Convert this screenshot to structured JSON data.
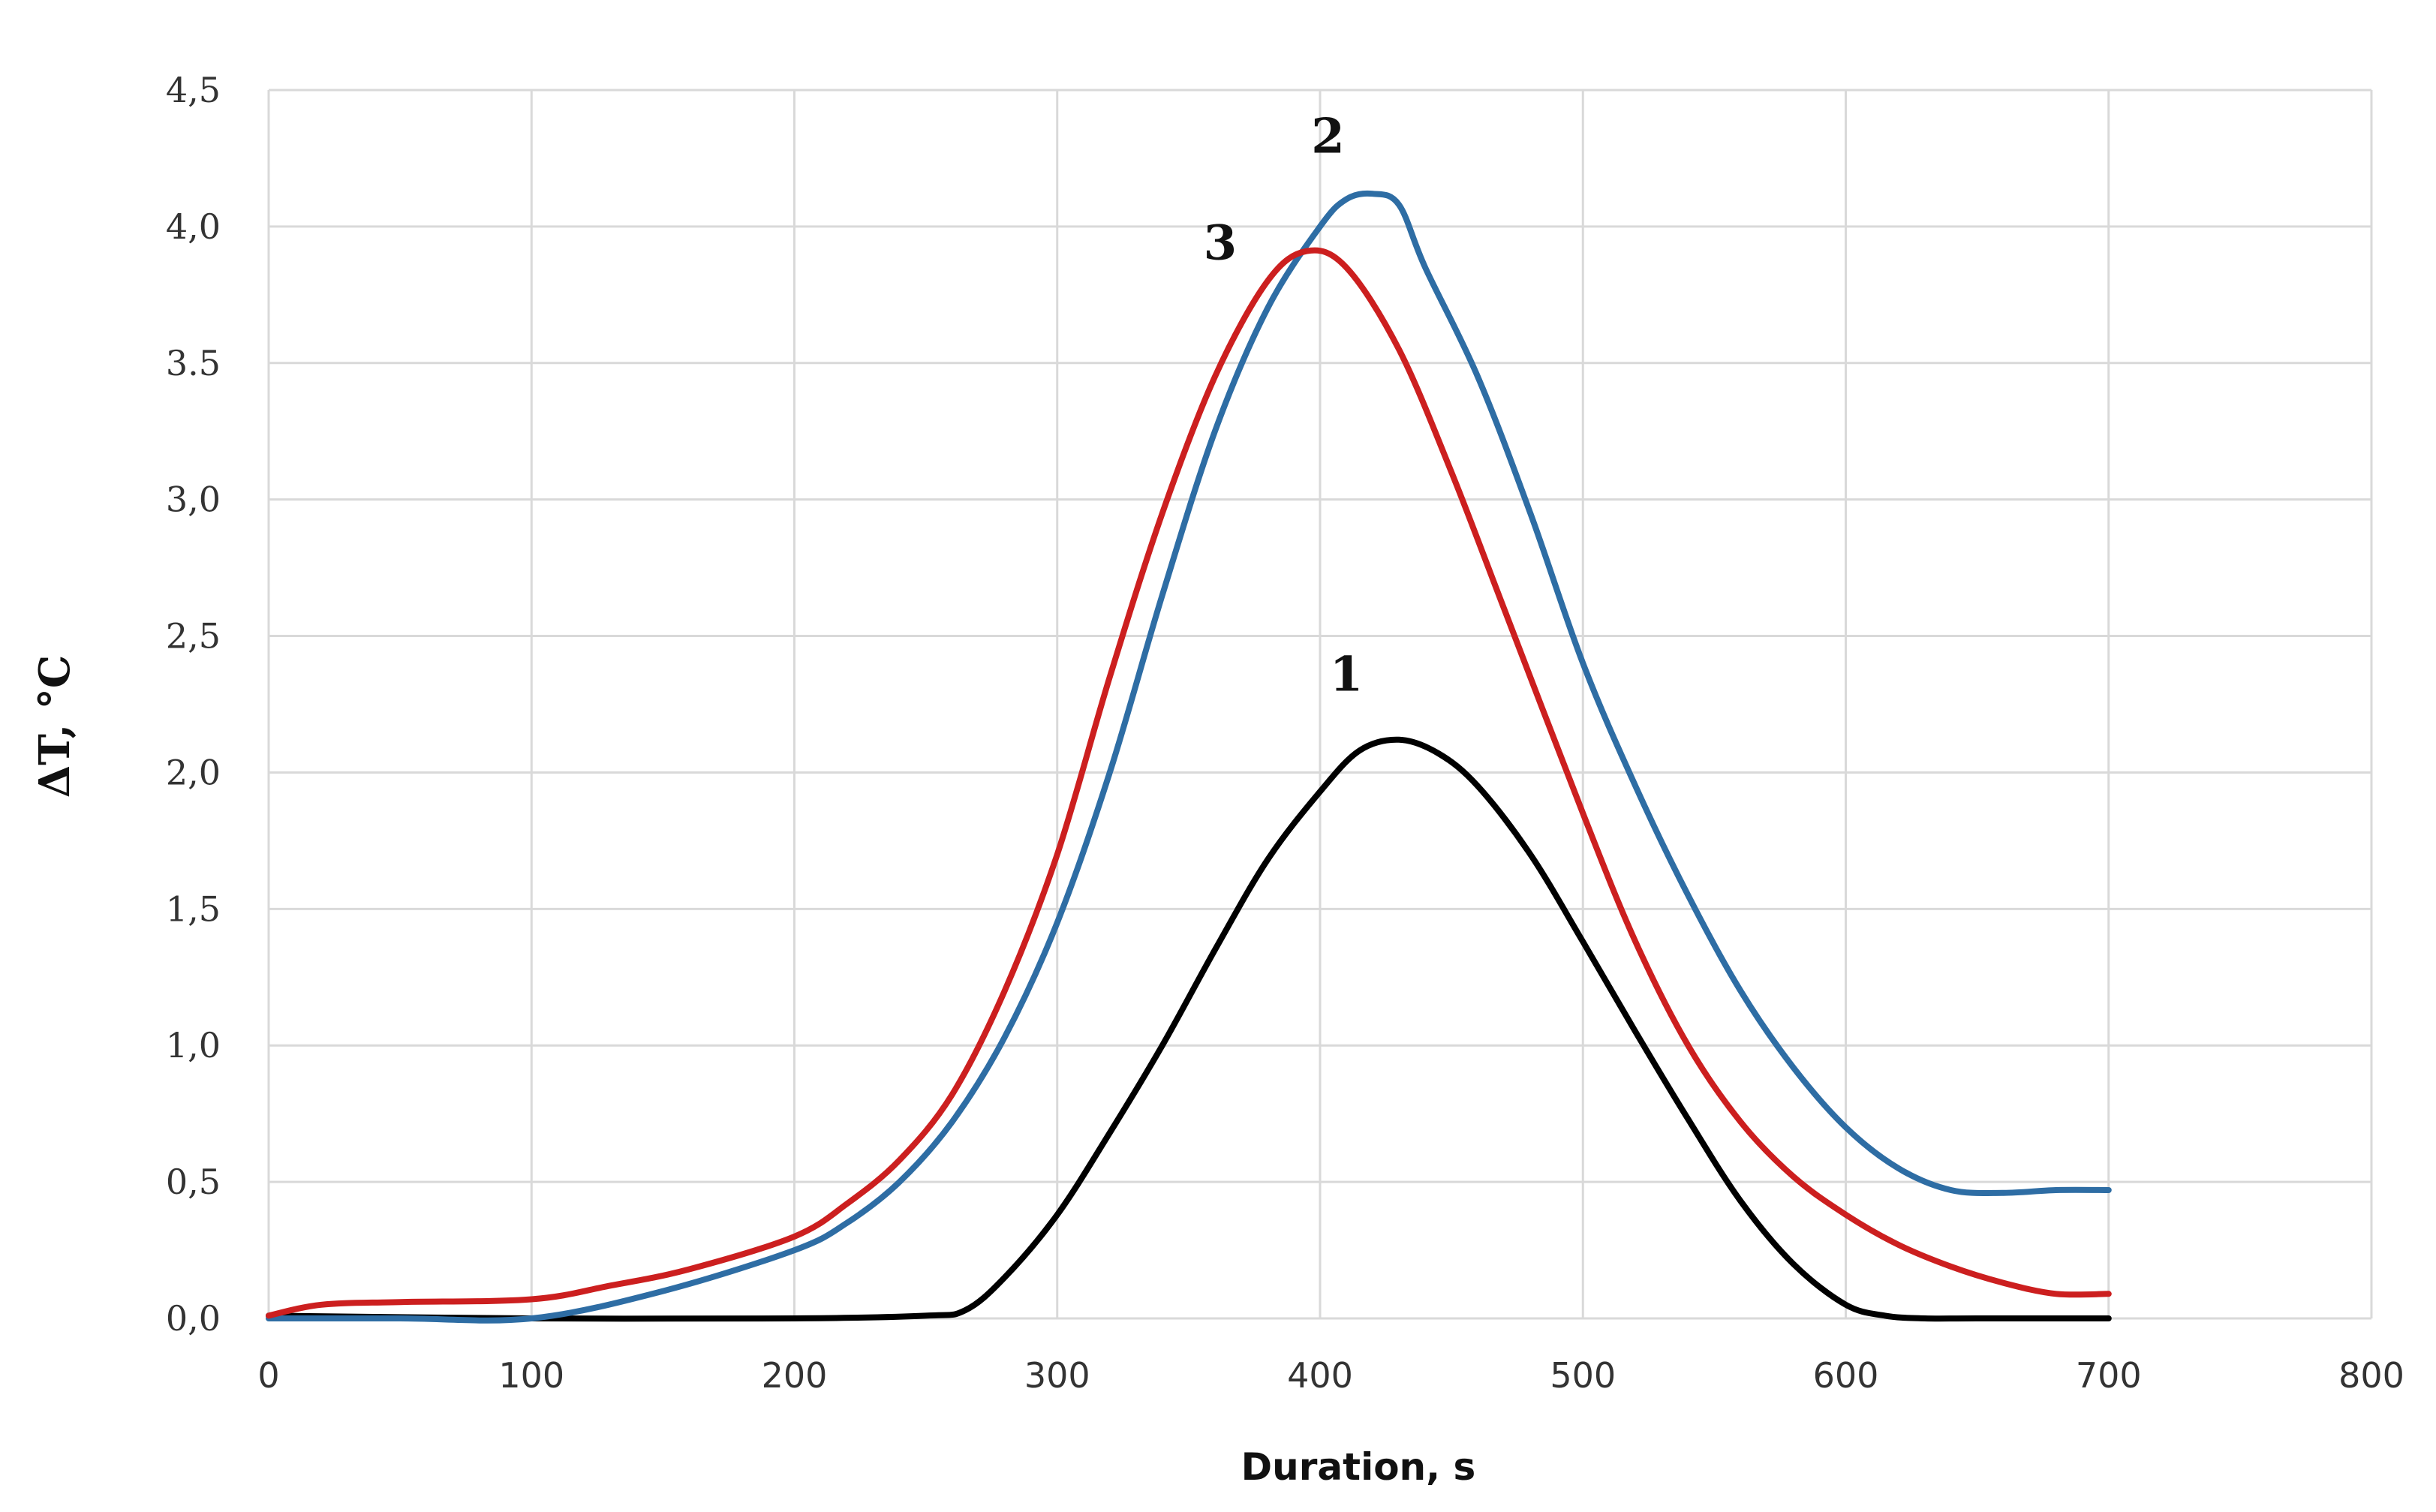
{
  "chart_data": {
    "type": "line",
    "title": "",
    "xlabel": "Duration, s",
    "ylabel": "ΔT, °C",
    "xlim": [
      0,
      800
    ],
    "ylim": [
      0,
      4.5
    ],
    "x_ticks": [
      0,
      100,
      200,
      300,
      400,
      500,
      600,
      700,
      800
    ],
    "x_tick_labels": [
      "0",
      "100",
      "200",
      "300",
      "400",
      "500",
      "600",
      "700",
      "800"
    ],
    "y_ticks": [
      0,
      0.5,
      1,
      1.5,
      2,
      2.5,
      3,
      3.5,
      4,
      4.5
    ],
    "y_tick_labels": [
      "0,0",
      "0,5",
      "1,0",
      "1,5",
      "2,0",
      "2,5",
      "3,0",
      "3.5",
      "4,0",
      "4,5"
    ],
    "grid": true,
    "series": [
      {
        "name": "1",
        "label": "1",
        "color": "#000000",
        "label_at": [
          410,
          2.3
        ],
        "x": [
          0,
          100,
          200,
          250,
          265,
          280,
          300,
          320,
          340,
          360,
          380,
          400,
          415,
          430,
          445,
          460,
          480,
          500,
          520,
          540,
          560,
          580,
          600,
          615,
          630,
          650,
          700
        ],
        "y": [
          0.01,
          0.0,
          0.0,
          0.01,
          0.03,
          0.15,
          0.38,
          0.68,
          1.0,
          1.35,
          1.68,
          1.93,
          2.08,
          2.12,
          2.07,
          1.95,
          1.7,
          1.38,
          1.05,
          0.73,
          0.43,
          0.2,
          0.05,
          0.01,
          0.0,
          0.0,
          0.0
        ]
      },
      {
        "name": "2",
        "label": "2",
        "color": "#2e6da4",
        "label_at": [
          403,
          4.27
        ],
        "x": [
          0,
          50,
          100,
          150,
          200,
          220,
          240,
          260,
          280,
          300,
          320,
          340,
          360,
          380,
          400,
          410,
          420,
          430,
          440,
          460,
          480,
          500,
          520,
          540,
          560,
          580,
          600,
          620,
          640,
          660,
          680,
          700
        ],
        "y": [
          0.0,
          0.0,
          0.0,
          0.1,
          0.25,
          0.35,
          0.5,
          0.72,
          1.03,
          1.45,
          2.0,
          2.65,
          3.25,
          3.7,
          4.0,
          4.1,
          4.12,
          4.08,
          3.85,
          3.45,
          2.95,
          2.4,
          1.95,
          1.55,
          1.2,
          0.92,
          0.7,
          0.55,
          0.47,
          0.46,
          0.47,
          0.47
        ]
      },
      {
        "name": "3",
        "label": "3",
        "color": "#cc1f1f",
        "label_at": [
          362,
          3.88
        ],
        "x": [
          0,
          20,
          50,
          100,
          130,
          160,
          200,
          220,
          240,
          260,
          280,
          300,
          320,
          340,
          360,
          380,
          395,
          410,
          430,
          450,
          470,
          500,
          520,
          540,
          560,
          580,
          600,
          620,
          640,
          660,
          680,
          700
        ],
        "y": [
          0.01,
          0.05,
          0.06,
          0.07,
          0.12,
          0.18,
          0.3,
          0.42,
          0.58,
          0.82,
          1.2,
          1.7,
          2.35,
          2.95,
          3.45,
          3.8,
          3.91,
          3.85,
          3.55,
          3.1,
          2.6,
          1.85,
          1.38,
          1.0,
          0.72,
          0.52,
          0.38,
          0.27,
          0.19,
          0.13,
          0.09,
          0.09
        ]
      }
    ]
  }
}
